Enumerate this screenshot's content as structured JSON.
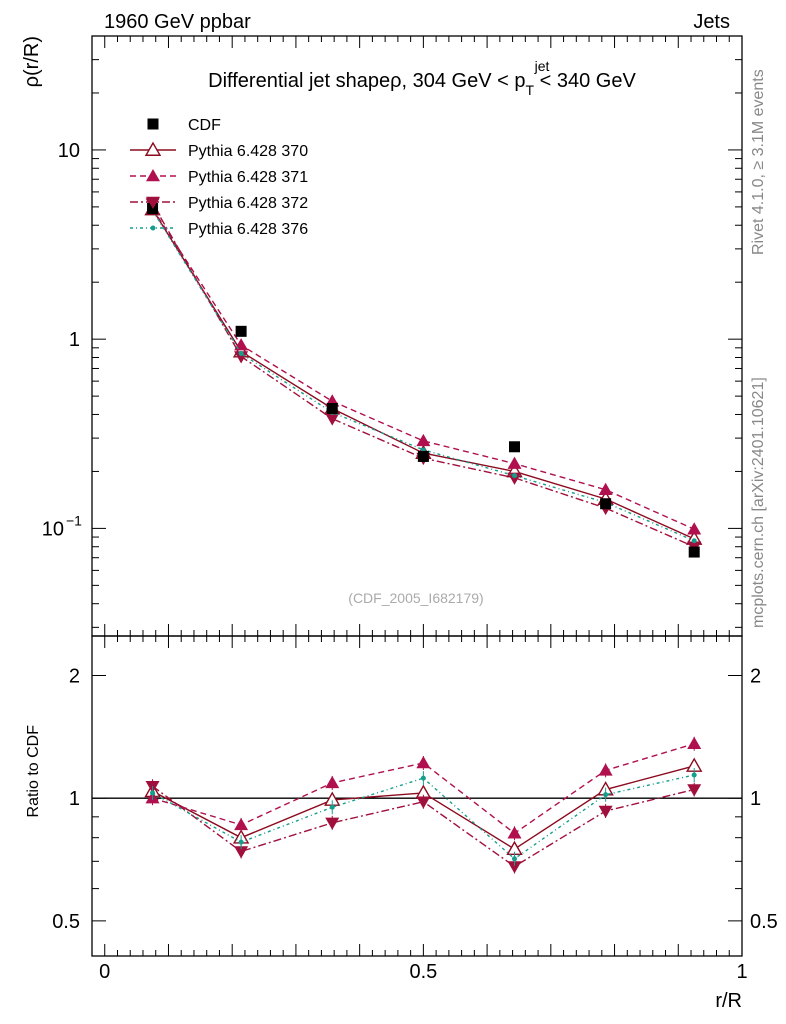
{
  "header": {
    "left": "1960 GeV ppbar",
    "right": "Jets"
  },
  "side_labels": {
    "rivet": "Rivet 4.1.0, ≥ 3.1M events",
    "mcplots": "mcplots.cern.ch [arXiv:2401.10621]"
  },
  "watermark": "(CDF_2005_I682179)",
  "chart_data": {
    "type": "line",
    "title_main": "Differential jet shapeρ, 304 GeV < p",
    "title_sup": "jet",
    "title_sub": "T",
    "title_tail": " < 340 GeV",
    "xlabel": "r/R",
    "ylabel_main": "ρ(r/R)",
    "ylabel_ratio": "Ratio to CDF",
    "xlim": [
      -0.02,
      1.0
    ],
    "ylim_main": [
      0.027,
      40
    ],
    "ylim_ratio": [
      0.41,
      2.5
    ],
    "x_ticks": [
      {
        "value": 0,
        "label": "0"
      },
      {
        "value": 0.5,
        "label": "0.5"
      },
      {
        "value": 1,
        "label": "1"
      }
    ],
    "y_ticks_main": [
      {
        "value": 10,
        "label": "10"
      },
      {
        "value": 1,
        "label": "1"
      },
      {
        "value": 0.1,
        "label": "10",
        "exp": "−1"
      }
    ],
    "y_ticks_ratio": [
      {
        "value": 2,
        "label": "2"
      },
      {
        "value": 1,
        "label": "1"
      },
      {
        "value": 0.5,
        "label": "0.5"
      }
    ],
    "x": [
      0.075,
      0.214,
      0.357,
      0.5,
      0.643,
      0.786,
      0.925
    ],
    "data": {
      "name": "CDF",
      "values": [
        4.9,
        1.1,
        0.43,
        0.24,
        0.27,
        0.135,
        0.075
      ]
    },
    "series": [
      {
        "name": "Pythia 6.428 370",
        "color": "#8c0a1e",
        "marker": "triangle-open",
        "dash": "solid",
        "values": [
          4.85,
          0.86,
          0.43,
          0.25,
          0.2,
          0.143,
          0.088
        ],
        "ratio": [
          1.04,
          0.8,
          0.99,
          1.03,
          0.75,
          1.05,
          1.2
        ]
      },
      {
        "name": "Pythia 6.428 371",
        "color": "#b0104e",
        "marker": "triangle-up",
        "dash": "dashed",
        "values": [
          4.9,
          0.93,
          0.47,
          0.29,
          0.22,
          0.16,
          0.099
        ],
        "ratio": [
          1.0,
          0.86,
          1.09,
          1.22,
          0.82,
          1.17,
          1.36
        ]
      },
      {
        "name": "Pythia 6.428 372",
        "color": "#a0103c",
        "marker": "triangle-down",
        "dash": "dashdot",
        "values": [
          5.2,
          0.81,
          0.38,
          0.235,
          0.185,
          0.128,
          0.08
        ],
        "ratio": [
          1.07,
          0.74,
          0.87,
          0.98,
          0.68,
          0.93,
          1.05
        ]
      },
      {
        "name": "Pythia 6.428 376",
        "color": "#169e8c",
        "marker": "dot",
        "dash": "dotdash",
        "values": [
          4.8,
          0.84,
          0.41,
          0.26,
          0.19,
          0.137,
          0.086
        ],
        "ratio": [
          1.03,
          0.78,
          0.95,
          1.12,
          0.71,
          1.02,
          1.14
        ]
      }
    ]
  }
}
